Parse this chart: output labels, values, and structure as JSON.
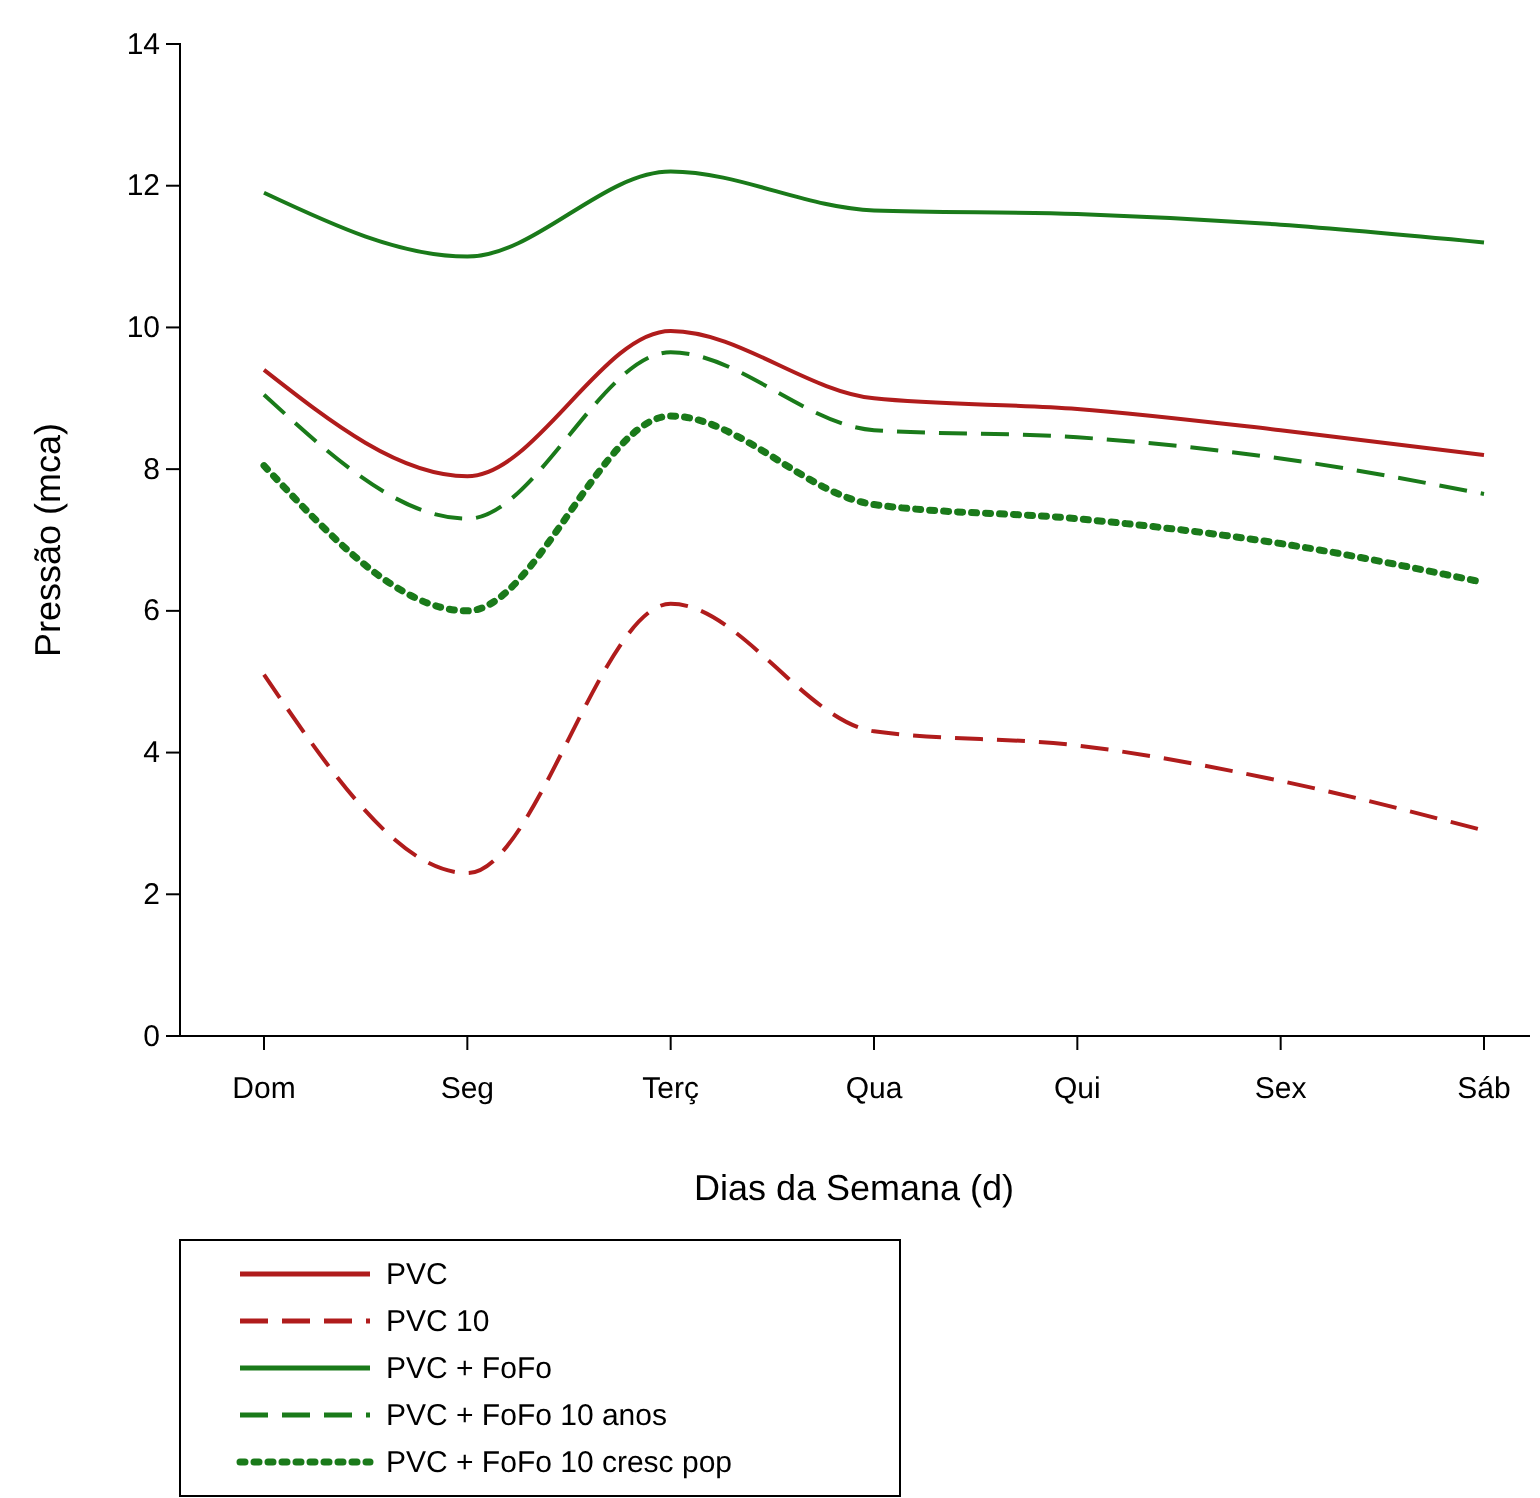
{
  "chart_data": {
    "type": "line",
    "xlabel": "Dias da Semana (d)",
    "ylabel": "Pressão (mca)",
    "categories": [
      "Dom",
      "Seg",
      "Terç",
      "Qua",
      "Qui",
      "Sex",
      "Sáb"
    ],
    "ylim": [
      0,
      14
    ],
    "yticks": [
      0,
      2,
      4,
      6,
      8,
      10,
      12,
      14
    ],
    "grid": false,
    "legend": "bottom",
    "marker": "none",
    "series": [
      {
        "name": "PVC",
        "color": "#b01c1c",
        "line_style": "solid",
        "values": [
          9.4,
          7.9,
          9.95,
          9.0,
          8.85,
          8.55,
          8.2
        ]
      },
      {
        "name": "PVC 10",
        "color": "#b01c1c",
        "line_style": "dashed",
        "values": [
          5.1,
          2.3,
          6.1,
          4.3,
          4.1,
          3.6,
          2.9
        ]
      },
      {
        "name": "PVC + FoFo",
        "color": "#1a7a1a",
        "line_style": "solid",
        "values": [
          11.9,
          11.0,
          12.2,
          11.65,
          11.6,
          11.45,
          11.2
        ]
      },
      {
        "name": "PVC + FoFo 10 anos",
        "color": "#1a7a1a",
        "line_style": "dashed",
        "values": [
          9.05,
          7.3,
          9.65,
          8.55,
          8.45,
          8.15,
          7.65
        ]
      },
      {
        "name": "PVC + FoFo 10 cresc pop",
        "color": "#1a7a1a",
        "line_style": "dotted",
        "values": [
          8.05,
          6.0,
          8.75,
          7.5,
          7.3,
          6.95,
          6.4
        ]
      }
    ]
  }
}
